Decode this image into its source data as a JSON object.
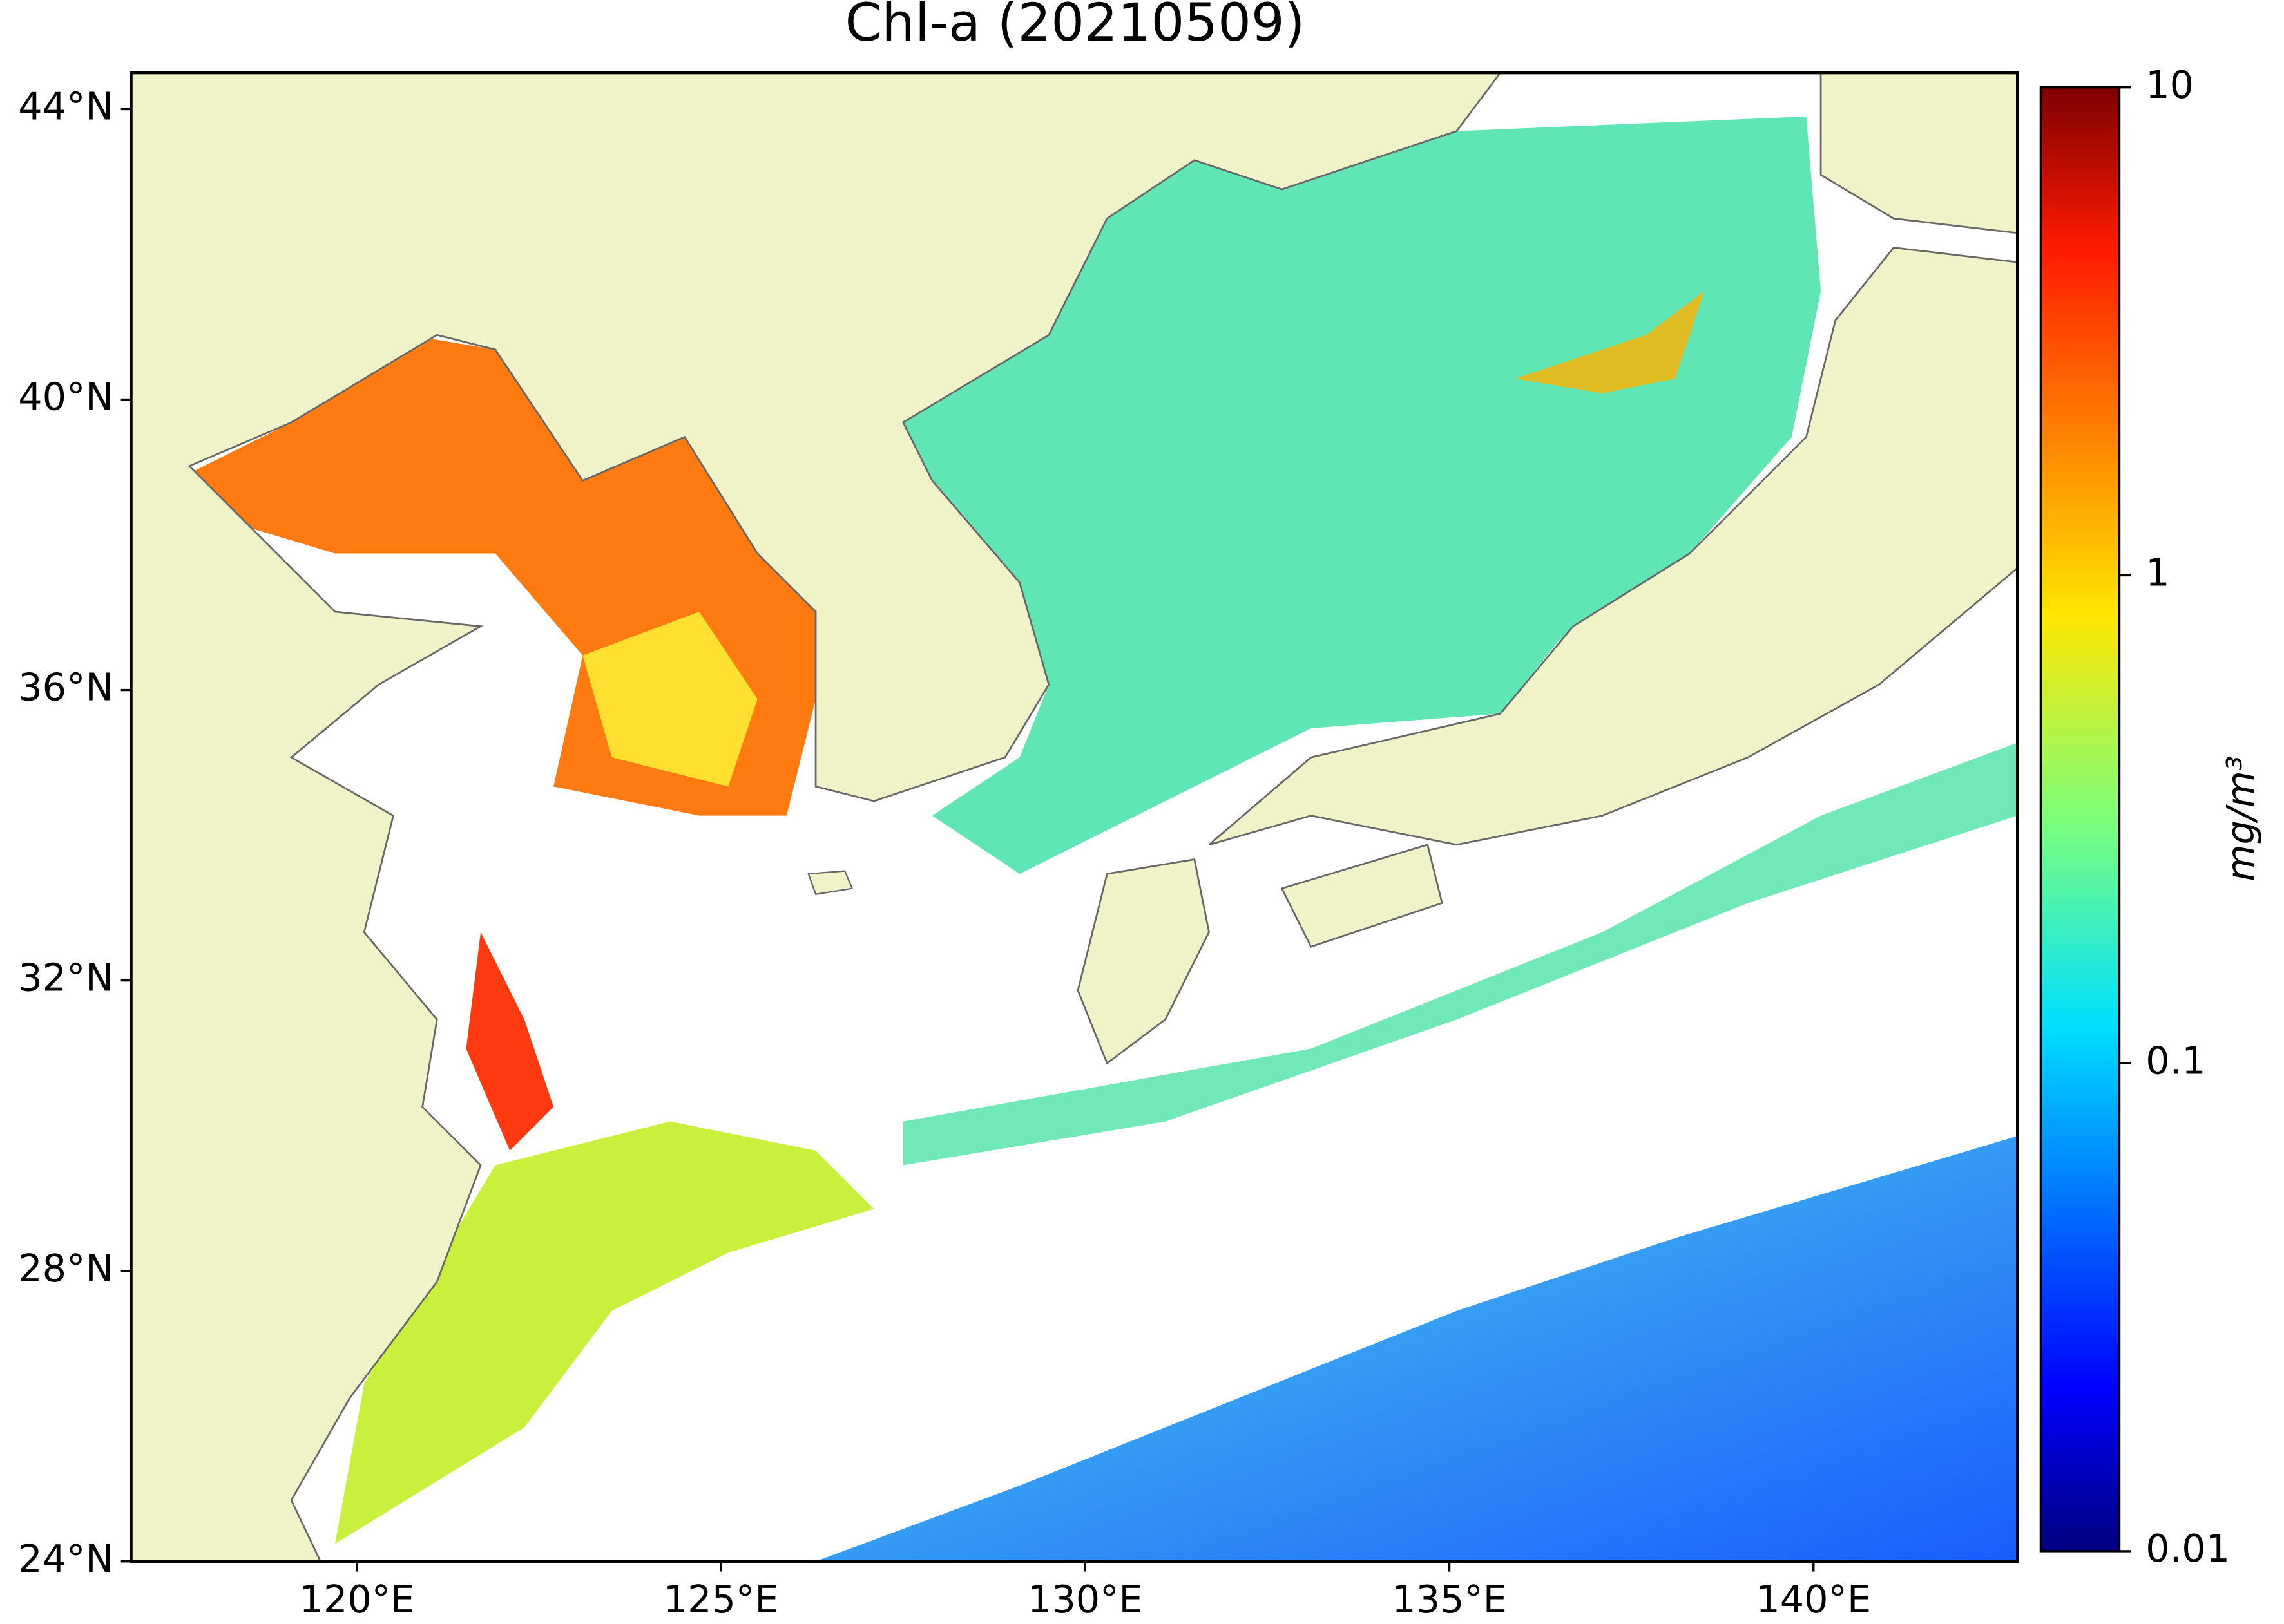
{
  "chart_data": {
    "type": "map",
    "title": "Chl-a (20210509)",
    "xlim": [
      116.9,
      142.8
    ],
    "ylim": [
      24,
      44.5
    ],
    "xticks": [
      {
        "value": 120,
        "label": "120°E"
      },
      {
        "value": 125,
        "label": "125°E"
      },
      {
        "value": 130,
        "label": "130°E"
      },
      {
        "value": 135,
        "label": "135°E"
      },
      {
        "value": 140,
        "label": "140°E"
      }
    ],
    "yticks": [
      {
        "value": 24,
        "label": "24°N"
      },
      {
        "value": 28,
        "label": "28°N"
      },
      {
        "value": 32,
        "label": "32°N"
      },
      {
        "value": 36,
        "label": "36°N"
      },
      {
        "value": 40,
        "label": "40°N"
      },
      {
        "value": 44,
        "label": "44°N"
      }
    ],
    "colorbar": {
      "label": "mg/m³",
      "scale": "log",
      "lim": [
        0.01,
        10
      ],
      "ticks": [
        0.01,
        0.1,
        1,
        10
      ],
      "colormap": "jet"
    }
  }
}
